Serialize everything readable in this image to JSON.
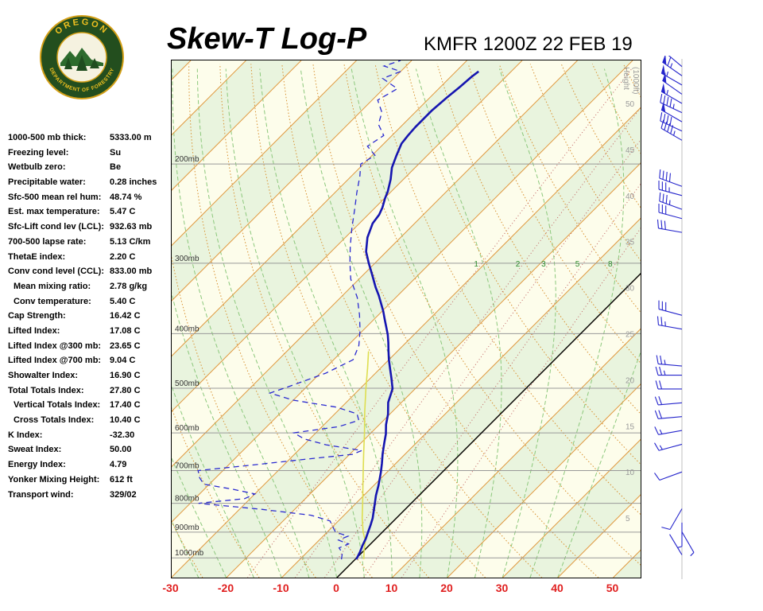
{
  "header": {
    "title": "Skew-T Log-P",
    "station": "KMFR 1200Z 22 FEB 19"
  },
  "logo": {
    "arc_top": "OREGON",
    "arc_bottom": "DEPARTMENT OF FORESTRY"
  },
  "indices": [
    {
      "label": "1000-500 mb thick:",
      "value": "5333.00 m"
    },
    {
      "label": "Freezing level:",
      "value": "Su"
    },
    {
      "label": "Wetbulb zero:",
      "value": "Be"
    },
    {
      "label": "Precipitable water:",
      "value": "0.28 inches"
    },
    {
      "label": "Sfc-500 mean rel hum:",
      "value": "48.74 %"
    },
    {
      "label": "Est. max temperature:",
      "value": "5.47 C"
    },
    {
      "label": "Sfc-Lift cond lev (LCL):",
      "value": "932.63 mb"
    },
    {
      "label": "700-500 lapse rate:",
      "value": "5.13 C/km"
    },
    {
      "label": "ThetaE index:",
      "value": "2.20 C"
    },
    {
      "label": "Conv cond level (CCL):",
      "value": "833.00 mb"
    },
    {
      "label": "Mean mixing ratio:",
      "value": "2.78 g/kg",
      "indent": true
    },
    {
      "label": "Conv temperature:",
      "value": "5.40 C",
      "indent": true
    },
    {
      "label": "Cap Strength:",
      "value": "16.42 C"
    },
    {
      "label": "Lifted Index:",
      "value": "17.08 C"
    },
    {
      "label": "Lifted Index @300 mb:",
      "value": "23.65 C"
    },
    {
      "label": "Lifted Index @700 mb:",
      "value": "9.04 C"
    },
    {
      "label": "Showalter Index:",
      "value": "16.90 C"
    },
    {
      "label": "Total Totals Index:",
      "value": "27.80 C"
    },
    {
      "label": "Vertical Totals Index:",
      "value": "17.40 C",
      "indent": true
    },
    {
      "label": "Cross Totals Index:",
      "value": "10.40 C",
      "indent": true
    },
    {
      "label": "K Index:",
      "value": "-32.30"
    },
    {
      "label": "Sweat Index:",
      "value": "50.00"
    },
    {
      "label": "Energy Index:",
      "value": "4.79"
    },
    {
      "label": "Yonker Mixing Height:",
      "value": "612 ft"
    },
    {
      "label": "Transport wind:",
      "value": "329/02"
    }
  ],
  "chart_data": {
    "type": "skew-t-log-p",
    "x_axis_ticks_c": [
      "-30",
      "-20",
      "-10",
      "0",
      "10",
      "20",
      "30",
      "40",
      "50"
    ],
    "pressure_lines_mb": [
      200,
      300,
      400,
      500,
      600,
      700,
      800,
      900,
      1000
    ],
    "pressure_label_suffix": "mb",
    "height_axis": {
      "title_line1": "Height",
      "title_line2": "(1000ft)",
      "labels_kft": [
        "50",
        "45",
        "40",
        "35",
        "30",
        "25",
        "20",
        "15",
        "10",
        "5"
      ]
    },
    "mixing_ratio_gkg": [
      "1",
      "2",
      "3",
      "5",
      "8"
    ],
    "temperature_profile_p_t": [
      [
        1006,
        0.2
      ],
      [
        975,
        -0.5
      ],
      [
        950,
        -1.2
      ],
      [
        925,
        -1.8
      ],
      [
        900,
        -2.6
      ],
      [
        875,
        -3.4
      ],
      [
        850,
        -4.3
      ],
      [
        806,
        -6.3
      ],
      [
        775,
        -7.8
      ],
      [
        745,
        -9.1
      ],
      [
        705,
        -11.1
      ],
      [
        680,
        -12.5
      ],
      [
        654,
        -14.1
      ],
      [
        625,
        -15.8
      ],
      [
        603,
        -17.1
      ],
      [
        580,
        -18.8
      ],
      [
        556,
        -20.3
      ],
      [
        530,
        -22.4
      ],
      [
        501,
        -24.1
      ],
      [
        480,
        -26.2
      ],
      [
        465,
        -27.8
      ],
      [
        445,
        -30.0
      ],
      [
        429,
        -31.7
      ],
      [
        415,
        -33.2
      ],
      [
        402,
        -34.7
      ],
      [
        390,
        -36.3
      ],
      [
        377,
        -38.1
      ],
      [
        365,
        -39.8
      ],
      [
        353,
        -41.7
      ],
      [
        342,
        -43.5
      ],
      [
        331,
        -45.5
      ],
      [
        315,
        -48.3
      ],
      [
        300,
        -51.1
      ],
      [
        286,
        -53.7
      ],
      [
        270,
        -56.0
      ],
      [
        255,
        -57.6
      ],
      [
        246,
        -58.0
      ],
      [
        239,
        -58.7
      ],
      [
        230,
        -59.9
      ],
      [
        224,
        -60.6
      ],
      [
        213,
        -62.3
      ],
      [
        203,
        -64.2
      ],
      [
        193,
        -65.6
      ],
      [
        184,
        -66.8
      ],
      [
        178,
        -67.1
      ],
      [
        172,
        -67.3
      ],
      [
        161,
        -67.3
      ],
      [
        152,
        -66.9
      ],
      [
        146,
        -66.5
      ],
      [
        140,
        -66.2
      ],
      [
        137,
        -65.9
      ]
    ],
    "dewpoint_profile_p_t": [
      [
        1006,
        -2.5
      ],
      [
        980,
        -3.5
      ],
      [
        960,
        -5.0
      ],
      [
        945,
        -4.0
      ],
      [
        930,
        -6.5
      ],
      [
        915,
        -5.5
      ],
      [
        900,
        -8.5
      ],
      [
        880,
        -10.0
      ],
      [
        860,
        -11.5
      ],
      [
        840,
        -16.0
      ],
      [
        820,
        -26.0
      ],
      [
        800,
        -38.5
      ],
      [
        785,
        -31.0
      ],
      [
        770,
        -30.0
      ],
      [
        755,
        -35.0
      ],
      [
        740,
        -41.0
      ],
      [
        720,
        -43.0
      ],
      [
        700,
        -44.5
      ],
      [
        685,
        -36.0
      ],
      [
        670,
        -28.0
      ],
      [
        655,
        -19.5
      ],
      [
        645,
        -18.5
      ],
      [
        630,
        -26.0
      ],
      [
        615,
        -31.0
      ],
      [
        600,
        -34.0
      ],
      [
        585,
        -27.0
      ],
      [
        570,
        -24.5
      ],
      [
        555,
        -26.0
      ],
      [
        540,
        -31.0
      ],
      [
        525,
        -40.0
      ],
      [
        510,
        -45.5
      ],
      [
        495,
        -43.0
      ],
      [
        470,
        -39.0
      ],
      [
        445,
        -36.5
      ],
      [
        420,
        -38.0
      ],
      [
        395,
        -40.5
      ],
      [
        370,
        -43.5
      ],
      [
        345,
        -47.0
      ],
      [
        320,
        -51.5
      ],
      [
        300,
        -54.5
      ],
      [
        280,
        -57.5
      ],
      [
        260,
        -60.5
      ],
      [
        240,
        -63.5
      ],
      [
        225,
        -66.0
      ],
      [
        210,
        -68.5
      ],
      [
        200,
        -70.5
      ],
      [
        193,
        -69.5
      ],
      [
        186,
        -72.5
      ],
      [
        178,
        -71.5
      ],
      [
        170,
        -74.5
      ],
      [
        162,
        -76.0
      ],
      [
        154,
        -79.0
      ],
      [
        147,
        -77.5
      ],
      [
        141,
        -82.0
      ],
      [
        137,
        -80.0
      ],
      [
        134,
        -84.0
      ],
      [
        131,
        -82.0
      ]
    ],
    "parcel_profile_p_t": [
      [
        1005,
        1.5
      ],
      [
        970,
        0.0
      ],
      [
        933,
        -1.5
      ],
      [
        900,
        -3.5
      ],
      [
        850,
        -6.2
      ],
      [
        800,
        -8.8
      ],
      [
        750,
        -11.6
      ],
      [
        700,
        -14.6
      ],
      [
        650,
        -17.8
      ],
      [
        600,
        -21.2
      ],
      [
        550,
        -25.0
      ],
      [
        500,
        -29.0
      ],
      [
        460,
        -32.4
      ],
      [
        430,
        -35.2
      ]
    ],
    "wind_barbs": [
      {
        "kft": 54,
        "dir_deg": 310,
        "speed_kt": 60
      },
      {
        "kft": 53,
        "dir_deg": 305,
        "speed_kt": 65
      },
      {
        "kft": 52,
        "dir_deg": 300,
        "speed_kt": 55
      },
      {
        "kft": 51,
        "dir_deg": 305,
        "speed_kt": 50
      },
      {
        "kft": 50,
        "dir_deg": 300,
        "speed_kt": 55
      },
      {
        "kft": 49,
        "dir_deg": 295,
        "speed_kt": 45
      },
      {
        "kft": 48,
        "dir_deg": 300,
        "speed_kt": 50
      },
      {
        "kft": 47,
        "dir_deg": 295,
        "speed_kt": 40
      },
      {
        "kft": 46,
        "dir_deg": 300,
        "speed_kt": 45
      },
      {
        "kft": 41,
        "dir_deg": 290,
        "speed_kt": 40
      },
      {
        "kft": 40,
        "dir_deg": 285,
        "speed_kt": 35
      },
      {
        "kft": 38.5,
        "dir_deg": 290,
        "speed_kt": 35
      },
      {
        "kft": 37.5,
        "dir_deg": 285,
        "speed_kt": 30
      },
      {
        "kft": 36,
        "dir_deg": 280,
        "speed_kt": 30
      },
      {
        "kft": 27,
        "dir_deg": 285,
        "speed_kt": 30
      },
      {
        "kft": 25.5,
        "dir_deg": 280,
        "speed_kt": 25
      },
      {
        "kft": 21.5,
        "dir_deg": 275,
        "speed_kt": 25
      },
      {
        "kft": 20.5,
        "dir_deg": 270,
        "speed_kt": 25
      },
      {
        "kft": 19,
        "dir_deg": 270,
        "speed_kt": 20
      },
      {
        "kft": 17.5,
        "dir_deg": 265,
        "speed_kt": 20
      },
      {
        "kft": 16,
        "dir_deg": 265,
        "speed_kt": 20
      },
      {
        "kft": 14.5,
        "dir_deg": 260,
        "speed_kt": 15
      },
      {
        "kft": 13,
        "dir_deg": 255,
        "speed_kt": 15
      },
      {
        "kft": 10,
        "dir_deg": 250,
        "speed_kt": 10
      },
      {
        "kft": 6,
        "dir_deg": 210,
        "speed_kt": 10
      },
      {
        "kft": 4.5,
        "dir_deg": 180,
        "speed_kt": 5
      },
      {
        "kft": 3.5,
        "dir_deg": 150,
        "speed_kt": 5
      },
      {
        "kft": 1,
        "dir_deg": 329,
        "speed_kt": 2
      }
    ]
  },
  "colors": {
    "isotherm": "#e09a42",
    "dry_adiabat": "#d89030",
    "moist_adiabat": "#8cc87c",
    "mixing_ratio": "#c06060",
    "mixing_label": "#2e8b2e",
    "temperature": "#1515b0",
    "dewpoint": "#2a2ad0",
    "parcel": "#dede50",
    "axis_red": "#e02020",
    "band_green": "#e9f4de",
    "band_cream": "#fdfdeb",
    "pressure_line": "#999999",
    "pressure_label": "#333333",
    "height_label": "#999999",
    "wind": "#2525cc",
    "zero_isotherm": "#000000"
  }
}
